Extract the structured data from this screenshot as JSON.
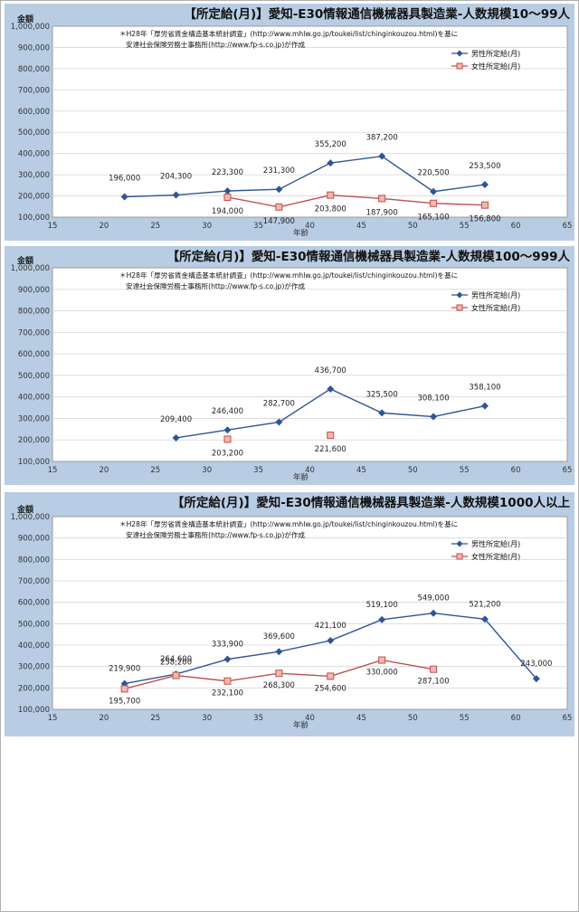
{
  "charts": [
    {
      "title": "【所定給(月)】愛知-E30情報通信機械器具製造業-人数規模10～99人",
      "ylabel": "金額",
      "xlabel": "年齢",
      "note_line1": "＊H28年「厚労省賃金構造基本統計調査」(http://www.mhlw.go.jp/toukei/list/chinginkouzou.html)を基に",
      "note_line2": "安達社会保険労務士事務所(http://www.fp-s.co.jp)が作成",
      "legend": [
        "男性所定給(月)",
        "女性所定給(月)"
      ],
      "x_ticks": [
        "15",
        "20",
        "25",
        "30",
        "35",
        "40",
        "45",
        "50",
        "55",
        "60",
        "65"
      ],
      "y_ticks": [
        "100,000",
        "200,000",
        "300,000",
        "400,000",
        "500,000",
        "600,000",
        "700,000",
        "800,000",
        "900,000",
        "1,000,000"
      ]
    },
    {
      "title": "【所定給(月)】愛知-E30情報通信機械器具製造業-人数規模100～999人",
      "ylabel": "金額",
      "xlabel": "年齢",
      "note_line1": "＊H28年「厚労省賃金構造基本統計調査」(http://www.mhlw.go.jp/toukei/list/chinginkouzou.html)を基に",
      "note_line2": "安達社会保険労務士事務所(http://www.fp-s.co.jp)が作成",
      "legend": [
        "男性所定給(月)",
        "女性所定給(月)"
      ],
      "x_ticks": [
        "15",
        "20",
        "25",
        "30",
        "35",
        "40",
        "45",
        "50",
        "55",
        "60",
        "65"
      ],
      "y_ticks": [
        "100,000",
        "200,000",
        "300,000",
        "400,000",
        "500,000",
        "600,000",
        "700,000",
        "800,000",
        "900,000",
        "1,000,000"
      ]
    },
    {
      "title": "【所定給(月)】愛知-E30情報通信機械器具製造業-人数規模1000人以上",
      "ylabel": "金額",
      "xlabel": "年齢",
      "note_line1": "＊H28年「厚労省賃金構造基本統計調査」(http://www.mhlw.go.jp/toukei/list/chinginkouzou.html)を基に",
      "note_line2": "安達社会保険労務士事務所(http://www.fp-s.co.jp)が作成",
      "legend": [
        "男性所定給(月)",
        "女性所定給(月)"
      ],
      "x_ticks": [
        "15",
        "20",
        "25",
        "30",
        "35",
        "40",
        "45",
        "50",
        "55",
        "60",
        "65"
      ],
      "y_ticks": [
        "100,000",
        "200,000",
        "300,000",
        "400,000",
        "500,000",
        "600,000",
        "700,000",
        "800,000",
        "900,000",
        "1,000,000"
      ]
    }
  ],
  "chart_data": [
    {
      "type": "line",
      "title": "【所定給(月)】愛知-E30情報通信機械器具製造業-人数規模10～99人",
      "xlabel": "年齢",
      "ylabel": "金額",
      "xlim": [
        15,
        65
      ],
      "ylim": [
        100000,
        1000000
      ],
      "grid": true,
      "legend": "top-right",
      "series": [
        {
          "name": "男性所定給(月)",
          "color": "#2f5597",
          "marker": "diamond",
          "x": [
            22,
            27,
            32,
            37,
            42,
            47,
            52,
            57
          ],
          "values": [
            196000,
            204300,
            223300,
            231300,
            355200,
            387200,
            220500,
            253500
          ],
          "labels": [
            "196,000",
            "204,300",
            "223,300",
            "231,300",
            "355,200",
            "387,200",
            "220,500",
            "253,500"
          ]
        },
        {
          "name": "女性所定給(月)",
          "color": "#c0504d",
          "marker": "square",
          "x": [
            32,
            37,
            42,
            47,
            52,
            57
          ],
          "values": [
            194000,
            147900,
            203800,
            187900,
            165100,
            156800
          ],
          "labels": [
            "194,000",
            "147,900",
            "203,800",
            "187,900",
            "165,100",
            "156,800"
          ]
        }
      ]
    },
    {
      "type": "line",
      "title": "【所定給(月)】愛知-E30情報通信機械器具製造業-人数規模100～999人",
      "xlabel": "年齢",
      "ylabel": "金額",
      "xlim": [
        15,
        65
      ],
      "ylim": [
        100000,
        1000000
      ],
      "grid": true,
      "legend": "top-right",
      "series": [
        {
          "name": "男性所定給(月)",
          "color": "#2f5597",
          "marker": "diamond",
          "x": [
            27,
            32,
            37,
            42,
            47,
            52,
            57
          ],
          "values": [
            209400,
            246400,
            282700,
            436700,
            325500,
            308100,
            358100
          ],
          "labels": [
            "209,400",
            "246,400",
            "282,700",
            "436,700",
            "325,500",
            "308,100",
            "358,100"
          ]
        },
        {
          "name": "女性所定給(月)",
          "color": "#c0504d",
          "marker": "square",
          "x": [
            32,
            42
          ],
          "values": [
            203200,
            221600
          ],
          "labels": [
            "203,200",
            "221,600"
          ],
          "connected": false
        }
      ]
    },
    {
      "type": "line",
      "title": "【所定給(月)】愛知-E30情報通信機械器具製造業-人数規模1000人以上",
      "xlabel": "年齢",
      "ylabel": "金額",
      "xlim": [
        15,
        65
      ],
      "ylim": [
        100000,
        1000000
      ],
      "grid": true,
      "legend": "top-right",
      "series": [
        {
          "name": "男性所定給(月)",
          "color": "#2f5597",
          "marker": "diamond",
          "x": [
            22,
            27,
            32,
            37,
            42,
            47,
            52,
            57,
            62
          ],
          "values": [
            219900,
            264600,
            333900,
            369600,
            421100,
            519100,
            549000,
            521200,
            243000
          ],
          "labels": [
            "219,900",
            "264,600",
            "333,900",
            "369,600",
            "421,100",
            "519,100",
            "549,000",
            "521,200",
            "243,000"
          ]
        },
        {
          "name": "女性所定給(月)",
          "color": "#c0504d",
          "marker": "square",
          "x": [
            22,
            27,
            32,
            37,
            42,
            47,
            52
          ],
          "values": [
            195700,
            258200,
            232100,
            268300,
            254600,
            330000,
            287100
          ],
          "labels": [
            "195,700",
            "258,200",
            "232,100",
            "268,300",
            "254,600",
            "330,000",
            "287,100"
          ]
        }
      ]
    }
  ]
}
